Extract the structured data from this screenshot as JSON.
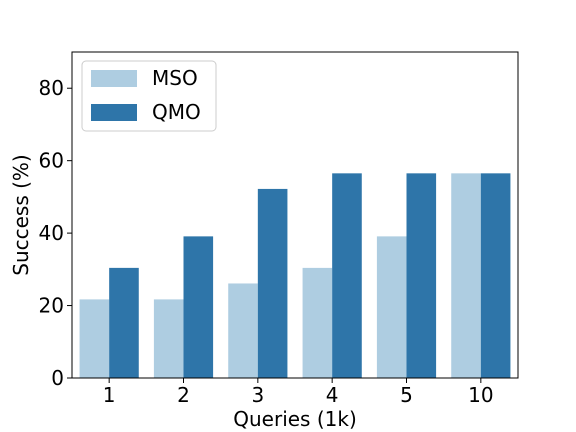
{
  "chart_data": {
    "type": "bar",
    "title": "",
    "xlabel": "Queries (1k)",
    "ylabel": "Success (%)",
    "categories": [
      "1",
      "2",
      "3",
      "4",
      "5",
      "10"
    ],
    "ylim": [
      0,
      90
    ],
    "yticks": [
      0,
      20,
      40,
      60,
      80
    ],
    "grid": false,
    "legend_position": "top-left",
    "series": [
      {
        "name": "MSO",
        "color": "#aecde1",
        "values": [
          21.7,
          21.7,
          26.1,
          30.4,
          39.1,
          56.5
        ]
      },
      {
        "name": "QMO",
        "color": "#2e75a9",
        "values": [
          30.4,
          39.1,
          52.2,
          56.5,
          56.5,
          56.5
        ]
      }
    ]
  }
}
